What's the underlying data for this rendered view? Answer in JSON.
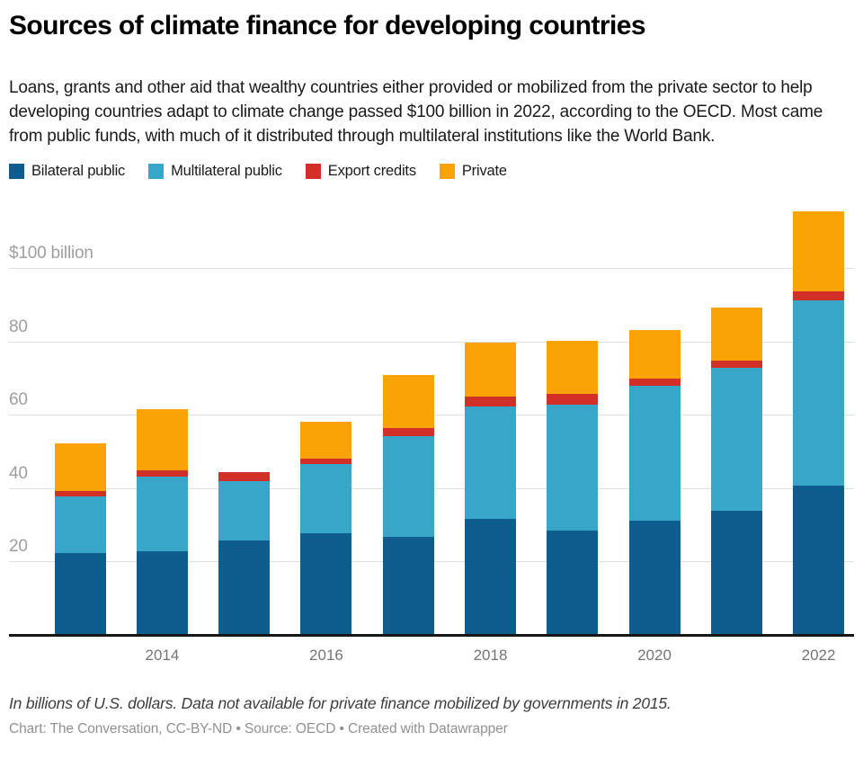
{
  "header": {
    "title": "Sources of climate finance for developing countries",
    "subtitle": "Loans, grants and other aid that wealthy countries either provided or mobilized from the private sector to help developing countries adapt to climate change passed $100 billion in 2022, according to the OECD. Most came from public funds, with much of it distributed through multilateral institutions like the World Bank."
  },
  "chart_data": {
    "type": "bar",
    "stacked": true,
    "title": "Sources of climate finance for developing countries",
    "unit": "billions of U.S. dollars",
    "categories": [
      "2013",
      "2014",
      "2015",
      "2016",
      "2017",
      "2018",
      "2019",
      "2020",
      "2021",
      "2022"
    ],
    "series": [
      {
        "name": "Bilateral public",
        "color": "#0e5d8f",
        "values": [
          22.5,
          23.1,
          25.9,
          28.0,
          27.0,
          32.0,
          28.7,
          31.4,
          34.2,
          41.0
        ]
      },
      {
        "name": "Multilateral public",
        "color": "#38a6c8",
        "values": [
          15.5,
          20.4,
          16.2,
          18.9,
          27.5,
          30.6,
          34.4,
          36.9,
          38.8,
          50.6
        ]
      },
      {
        "name": "Export credits",
        "color": "#d12f28",
        "values": [
          1.6,
          1.6,
          2.5,
          1.5,
          2.1,
          2.6,
          3.0,
          1.9,
          2.1,
          2.4
        ]
      },
      {
        "name": "Private",
        "color": "#faa307",
        "values": [
          12.8,
          16.7,
          null,
          10.1,
          14.5,
          14.7,
          14.3,
          13.1,
          14.4,
          21.9
        ]
      }
    ],
    "totals": [
      52.4,
      61.8,
      44.6,
      58.5,
      71.1,
      79.9,
      80.4,
      83.3,
      89.5,
      115.9
    ],
    "y_axis": {
      "ticks": [
        20,
        40,
        60,
        80,
        100
      ],
      "top_tick_label": "$100 billion",
      "ylim": [
        0,
        117
      ],
      "grid": true
    },
    "x_axis": {
      "visible_tick_labels": [
        "2014",
        "2016",
        "2018",
        "2020",
        "2022"
      ]
    },
    "legend_position": "top"
  },
  "footer": {
    "note": "In billions of U.S. dollars. Data not available for private finance mobilized by governments in 2015.",
    "credit": "Chart: The Conversation, CC-BY-ND • Source: OECD • Created with Datawrapper"
  }
}
